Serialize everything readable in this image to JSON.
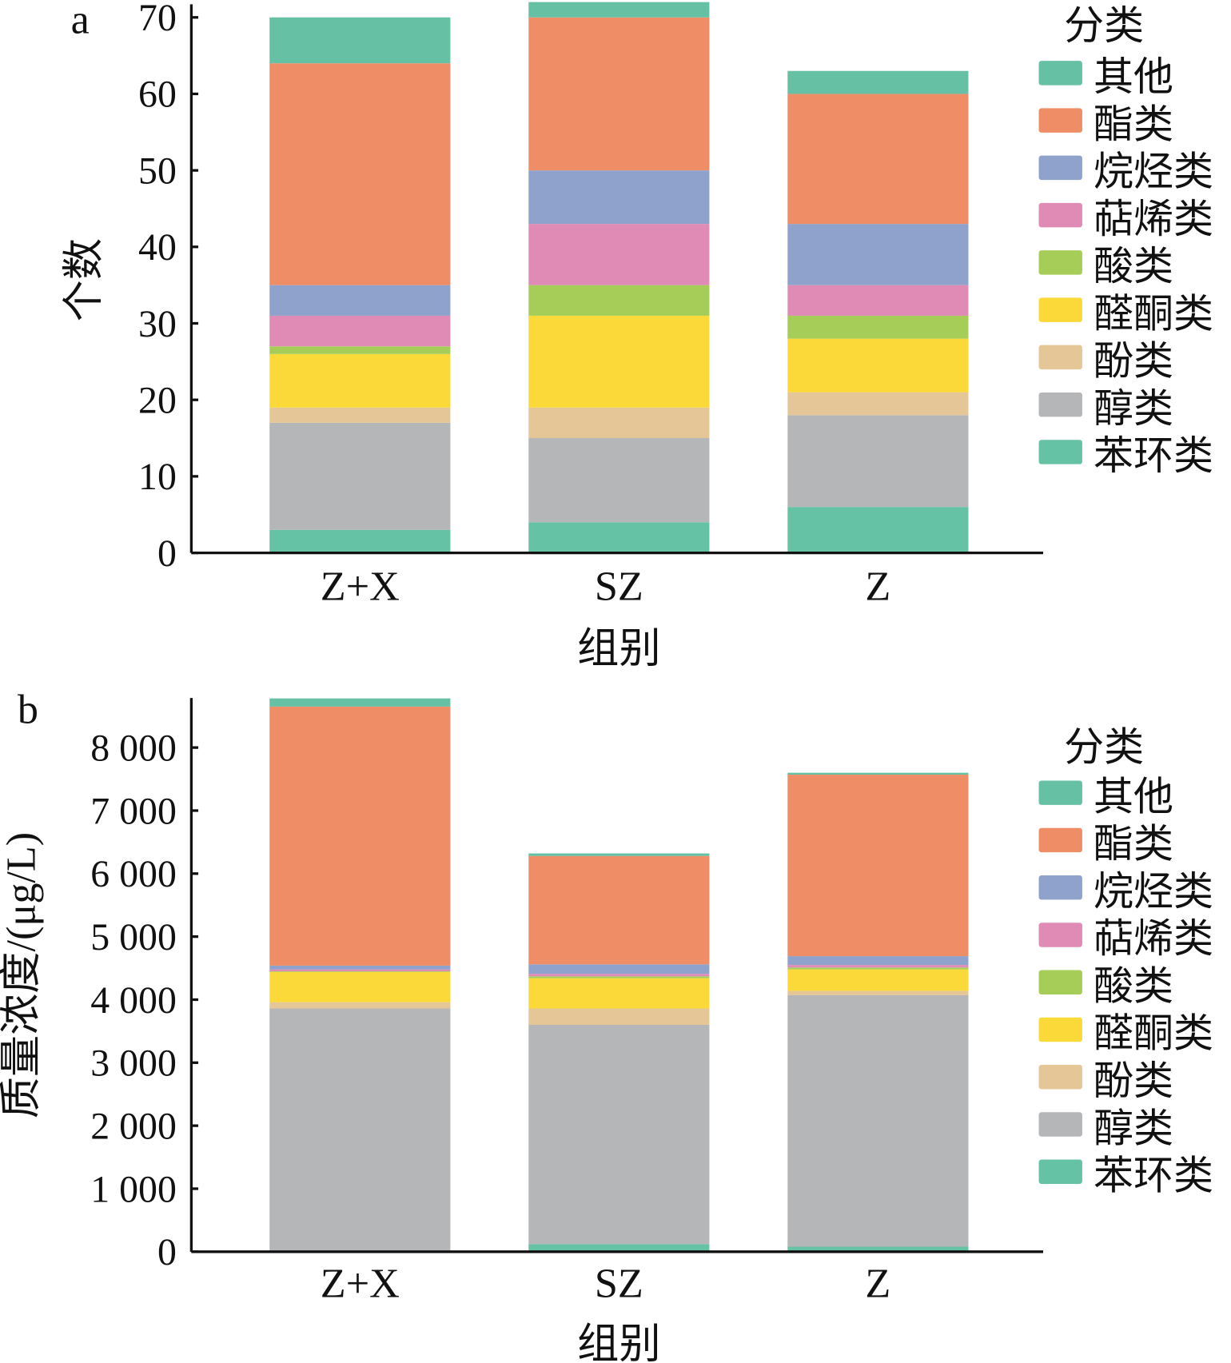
{
  "chart_data": [
    {
      "type": "bar",
      "stacked": true,
      "panel_label": "a",
      "title": "",
      "xlabel": "组别",
      "ylabel": "个数",
      "ylim": [
        0,
        70
      ],
      "yticks": [
        0,
        10,
        20,
        30,
        40,
        50,
        60,
        70
      ],
      "ytick_labels": [
        "0",
        "10",
        "20",
        "30",
        "40",
        "50",
        "60",
        "70"
      ],
      "categories": [
        "Z+X",
        "SZ",
        "Z"
      ],
      "legend_title": "分类",
      "legend_position": "right",
      "series": [
        {
          "name": "苯环类",
          "color": "#66c2a5",
          "values": [
            3,
            4,
            6
          ]
        },
        {
          "name": "醇类",
          "color": "#b5b6b8",
          "values": [
            14,
            11,
            12
          ]
        },
        {
          "name": "酚类",
          "color": "#e5c797",
          "values": [
            2,
            4,
            3
          ]
        },
        {
          "name": "醛酮类",
          "color": "#fbd938",
          "values": [
            7,
            12,
            7
          ]
        },
        {
          "name": "酸类",
          "color": "#a6cd57",
          "values": [
            1,
            4,
            3
          ]
        },
        {
          "name": "萜烯类",
          "color": "#e08bb6",
          "values": [
            4,
            8,
            4
          ]
        },
        {
          "name": "烷烃类",
          "color": "#8fa2cb",
          "values": [
            4,
            7,
            8
          ]
        },
        {
          "name": "酯类",
          "color": "#ef8e66",
          "values": [
            29,
            20,
            17
          ]
        },
        {
          "name": "其他",
          "color": "#66c0a4",
          "values": [
            6,
            2,
            3
          ]
        }
      ]
    },
    {
      "type": "bar",
      "stacked": true,
      "panel_label": "b",
      "title": "",
      "xlabel": "组别",
      "ylabel": "质量浓度/(μg/L)",
      "ylim": [
        0,
        8760
      ],
      "yticks": [
        0,
        1000,
        2000,
        3000,
        4000,
        5000,
        6000,
        7000,
        8000
      ],
      "ytick_labels": [
        "0",
        "1 000",
        "2 000",
        "3 000",
        "4 000",
        "5 000",
        "6 000",
        "7 000",
        "8 000"
      ],
      "categories": [
        "Z+X",
        "SZ",
        "Z"
      ],
      "legend_title": "分类",
      "legend_position": "right",
      "series": [
        {
          "name": "苯环类",
          "color": "#66c2a5",
          "values": [
            20,
            120,
            80
          ]
        },
        {
          "name": "醇类",
          "color": "#b5b6b8",
          "values": [
            3840,
            3480,
            3990
          ]
        },
        {
          "name": "酚类",
          "color": "#e5c797",
          "values": [
            100,
            260,
            70
          ]
        },
        {
          "name": "醛酮类",
          "color": "#fbd938",
          "values": [
            480,
            480,
            340
          ]
        },
        {
          "name": "酸类",
          "color": "#a6cd57",
          "values": [
            10,
            30,
            30
          ]
        },
        {
          "name": "萜烯类",
          "color": "#e08bb6",
          "values": [
            30,
            40,
            40
          ]
        },
        {
          "name": "烷烃类",
          "color": "#8fa2cb",
          "values": [
            60,
            150,
            140
          ]
        },
        {
          "name": "酯类",
          "color": "#ef8e66",
          "values": [
            4110,
            1720,
            2880
          ]
        },
        {
          "name": "其他",
          "color": "#66c0a4",
          "values": [
            130,
            40,
            30
          ]
        }
      ]
    }
  ]
}
